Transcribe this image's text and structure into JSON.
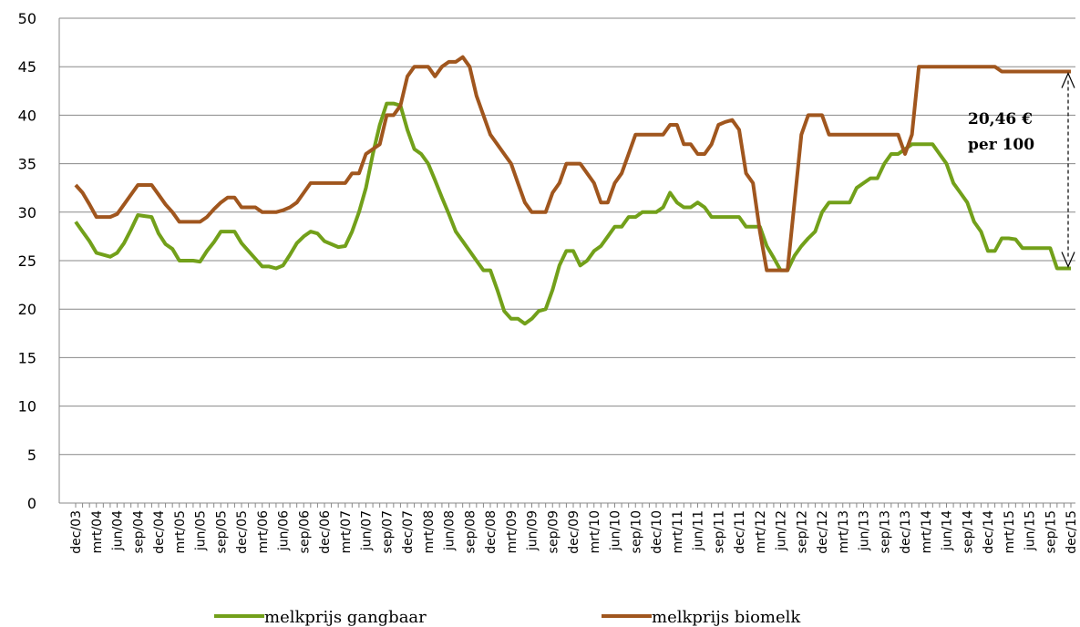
{
  "chart_data": {
    "type": "line",
    "categories": [
      "dec/03",
      null,
      null,
      "mrt/04",
      null,
      null,
      "jun/04",
      null,
      null,
      "sep/04",
      null,
      null,
      "dec/04",
      null,
      null,
      "mrt/05",
      null,
      null,
      "jun/05",
      null,
      null,
      "sep/05",
      null,
      null,
      "dec/05",
      null,
      null,
      "mrt/06",
      null,
      null,
      "jun/06",
      null,
      null,
      "sep/06",
      null,
      null,
      "dec/06",
      null,
      null,
      "mrt/07",
      null,
      null,
      "jun/07",
      null,
      null,
      "sep/07",
      null,
      null,
      "dec/07",
      null,
      null,
      "mrt/08",
      null,
      null,
      "jun/08",
      null,
      null,
      "sep/08",
      null,
      null,
      "dec/08",
      null,
      null,
      "mrt/09",
      null,
      null,
      "jun/09",
      null,
      null,
      "sep/09",
      null,
      null,
      "dec/09",
      null,
      null,
      "mrt/10",
      null,
      null,
      "jun/10",
      null,
      null,
      "sep/10",
      null,
      null,
      "dec/10",
      null,
      null,
      "mrt/11",
      null,
      null,
      "jun/11",
      null,
      null,
      "sep/11",
      null,
      null,
      "dec/11",
      null,
      null,
      "mrt/12",
      null,
      null,
      "jun/12",
      null,
      null,
      "sep/12",
      null,
      null,
      "dec/12",
      null,
      null,
      "mrt/13",
      null,
      null,
      "jun/13",
      null,
      null,
      "sep/13",
      null,
      null,
      "dec/13",
      null,
      null,
      "mrt/14",
      null,
      null,
      "jun/14",
      null,
      null,
      "sep/14",
      null,
      null,
      "dec/14",
      null,
      null,
      "mrt/15",
      null,
      null,
      "jun/15",
      null,
      null,
      "sep/15",
      null,
      null,
      "dec/15"
    ],
    "series": [
      {
        "name": "melkprijs gangbaar",
        "color": "#72a01a",
        "values": [
          29,
          28,
          27,
          25.8,
          25.6,
          25.4,
          25.8,
          26.8,
          28.2,
          29.7,
          29.6,
          29.5,
          27.8,
          26.7,
          26.2,
          25,
          25,
          25,
          24.9,
          26,
          26.9,
          28,
          28,
          28,
          26.8,
          26,
          25.2,
          24.4,
          24.4,
          24.2,
          24.5,
          25.6,
          26.8,
          27.5,
          28,
          27.8,
          27,
          26.7,
          26.4,
          26.5,
          28,
          30,
          32.5,
          36,
          39,
          41.2,
          41.2,
          41,
          38.5,
          36.5,
          36,
          35,
          33.3,
          31.5,
          29.8,
          28,
          27,
          26,
          25,
          24,
          24,
          22,
          19.8,
          19,
          19,
          18.5,
          19,
          19.8,
          20,
          22,
          24.5,
          26,
          26,
          24.5,
          25,
          26,
          26.5,
          27.5,
          28.5,
          28.5,
          29.5,
          29.5,
          30,
          30,
          30,
          30.5,
          32,
          31,
          30.5,
          30.5,
          31,
          30.5,
          29.5,
          29.5,
          29.5,
          29.5,
          29.5,
          28.5,
          28.5,
          28.5,
          26.5,
          25.3,
          24,
          24,
          25.5,
          26.5,
          27.3,
          28,
          30,
          31,
          31,
          31,
          31,
          32.5,
          33,
          33.5,
          33.5,
          35,
          36,
          36,
          36.5,
          37,
          37,
          37,
          37,
          36,
          35,
          33,
          32,
          31,
          29,
          28,
          26,
          26,
          27.3,
          27.3,
          27.2,
          26.3,
          26.3,
          26.3,
          26.3,
          26.3,
          24.2,
          24.2,
          24.2
        ]
      },
      {
        "name": "melkprijs biomelk",
        "color": "#a0561e",
        "values": [
          32.8,
          32,
          30.8,
          29.5,
          29.5,
          29.5,
          29.8,
          30.8,
          31.8,
          32.8,
          32.8,
          32.8,
          31.8,
          30.8,
          30,
          29,
          29,
          29,
          29,
          29.5,
          30.3,
          31,
          31.5,
          31.5,
          30.5,
          30.5,
          30.5,
          30,
          30,
          30,
          30.2,
          30.5,
          31,
          32,
          33,
          33,
          33,
          33,
          33,
          33,
          34,
          34,
          36,
          36.5,
          37,
          40,
          40,
          41,
          44,
          45,
          45,
          45,
          44,
          45,
          45.5,
          45.5,
          46,
          45,
          42,
          40,
          38,
          37,
          36,
          35,
          33,
          31,
          30,
          30,
          30,
          32,
          33,
          35,
          35,
          35,
          34,
          33,
          31,
          31,
          33,
          34,
          36,
          38,
          38,
          38,
          38,
          38,
          39,
          39,
          37,
          37,
          36,
          36,
          37,
          39,
          39.3,
          39.5,
          38.5,
          34,
          33,
          28,
          24,
          24,
          24,
          24,
          31,
          38,
          40,
          40,
          40,
          38,
          38,
          38,
          38,
          38,
          38,
          38,
          38,
          38,
          38,
          38,
          36,
          38,
          45,
          45,
          45,
          45,
          45,
          45,
          45,
          45,
          45,
          45,
          45,
          45,
          44.5,
          44.5,
          44.5,
          44.5,
          44.5,
          44.5,
          44.5,
          44.5,
          44.5,
          44.5,
          44.5
        ]
      }
    ],
    "ylim": [
      0,
      50
    ],
    "yticks": [
      0,
      5,
      10,
      15,
      20,
      25,
      30,
      35,
      40,
      45,
      50
    ],
    "grid": true,
    "annotation": [
      "20,46 €",
      "per 100"
    ]
  }
}
